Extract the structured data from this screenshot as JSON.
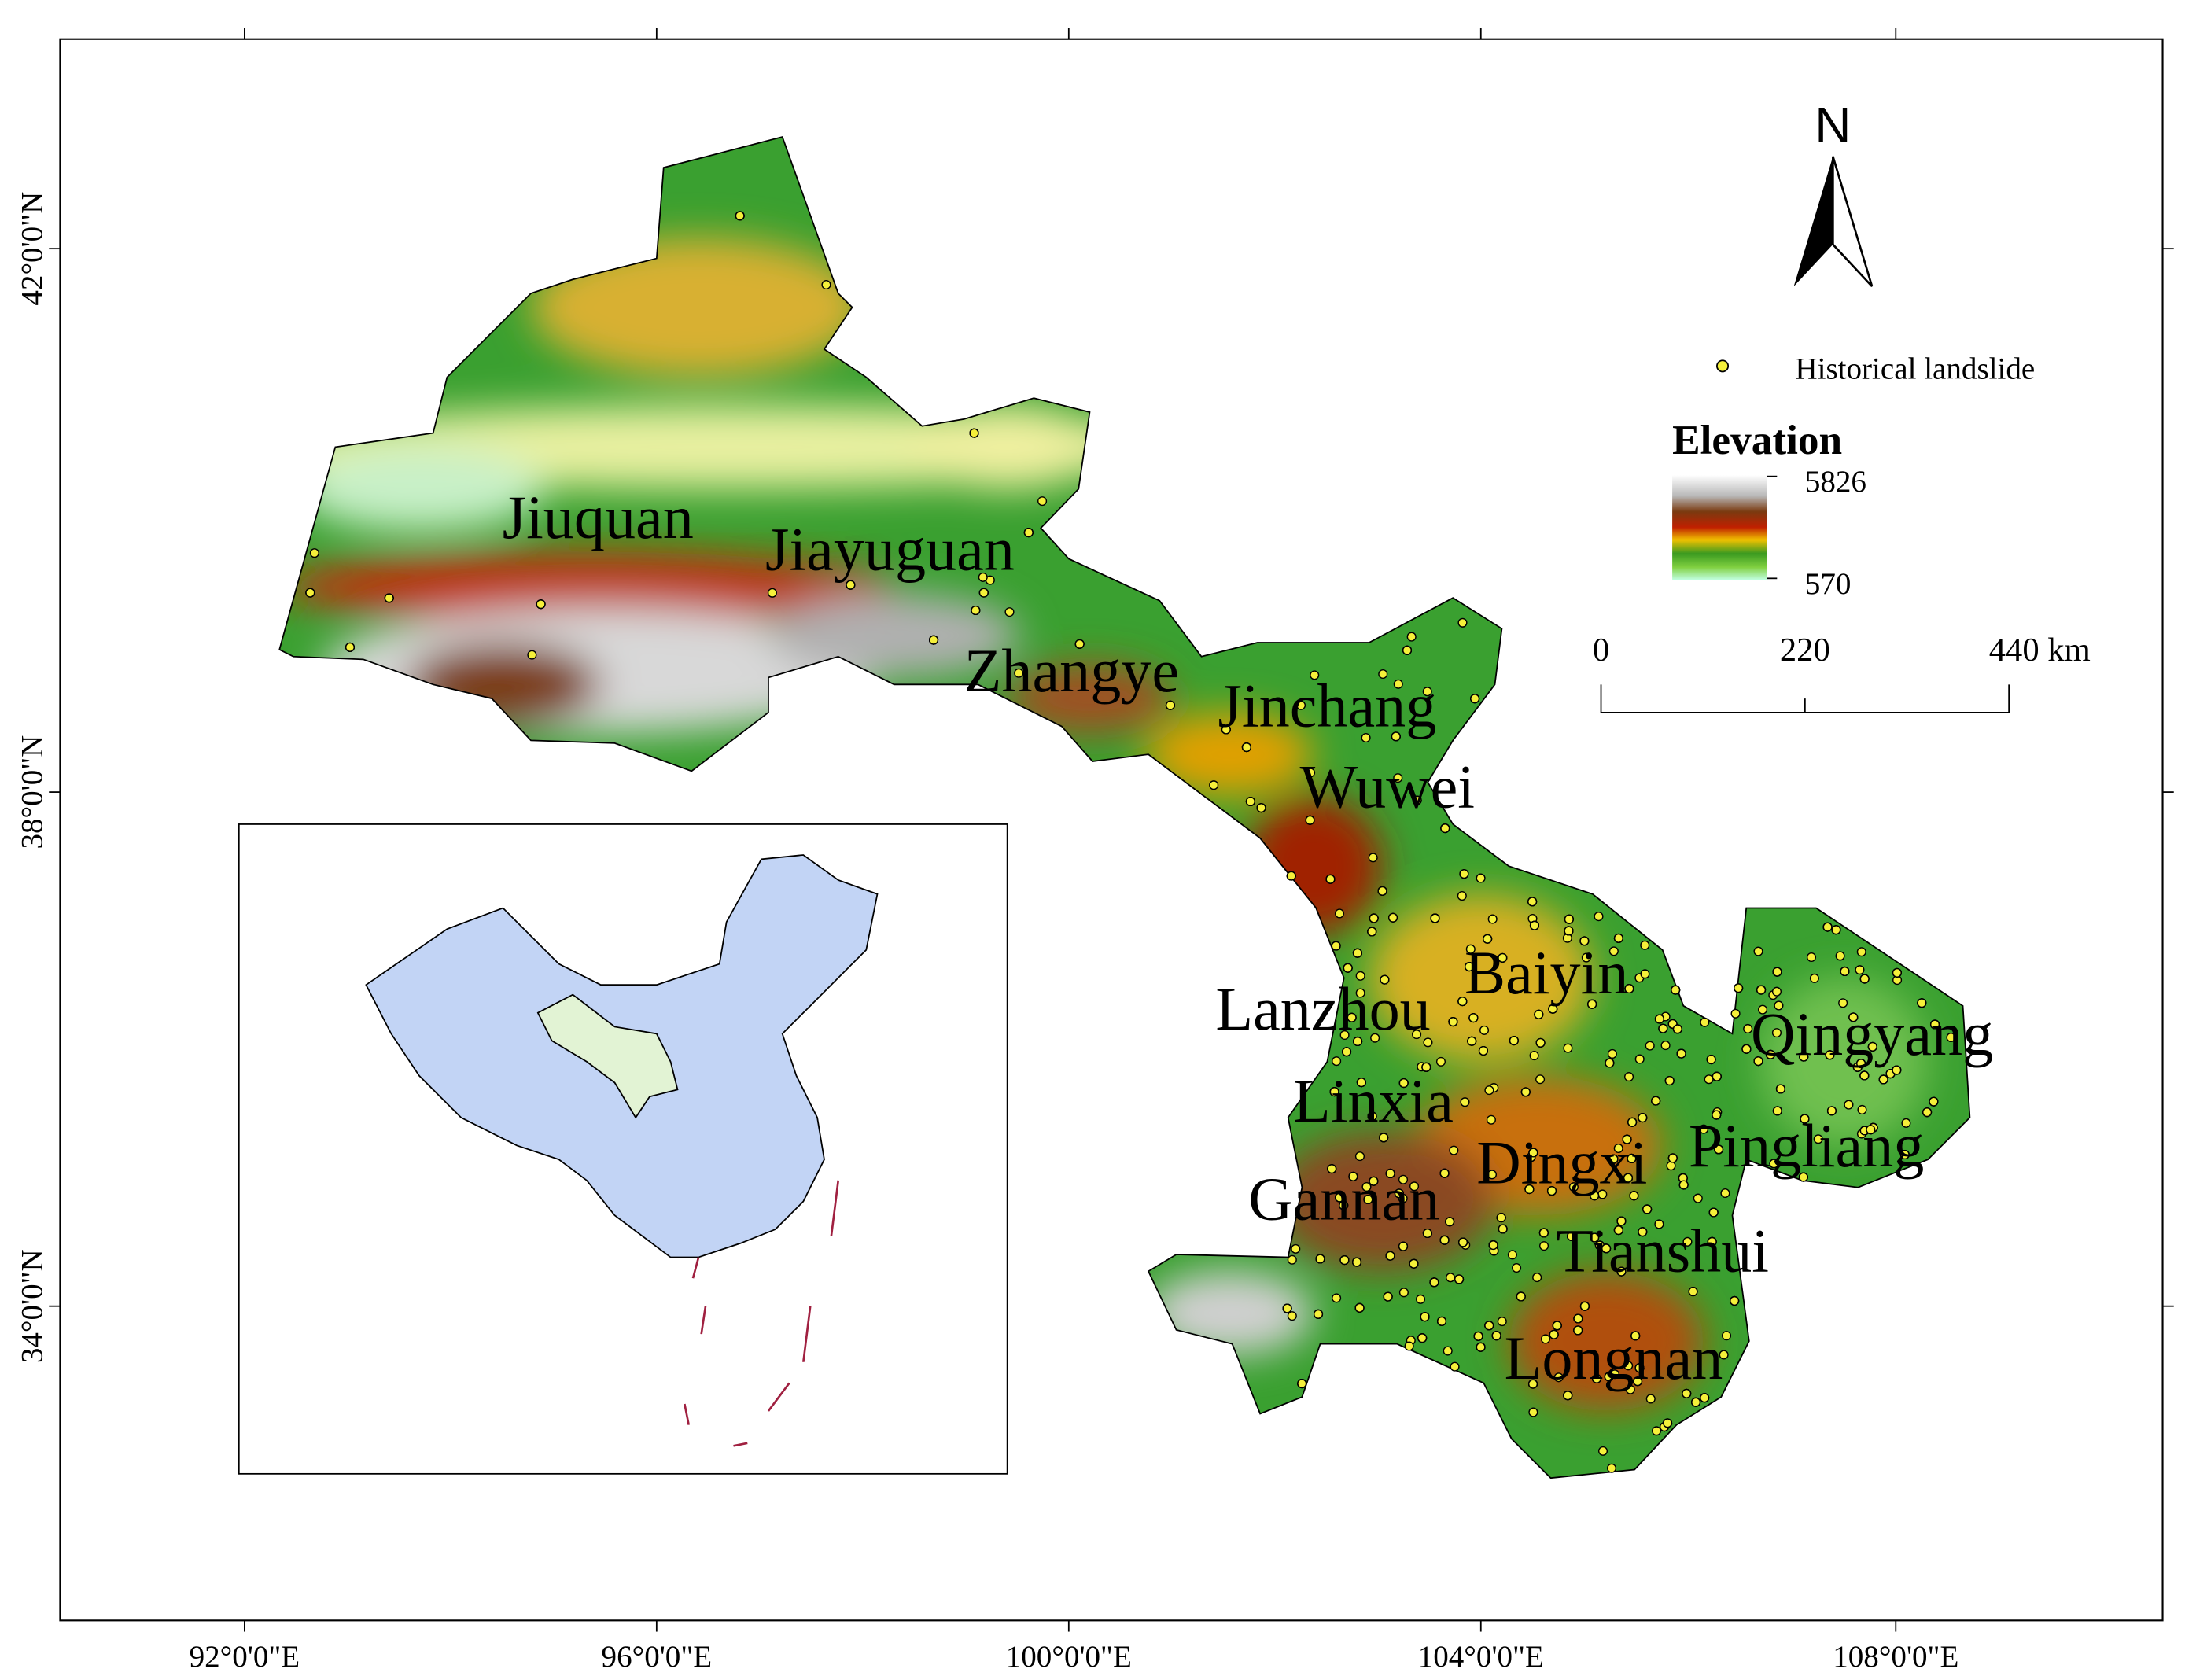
{
  "map": {
    "x_ticks": [
      "92°0'0\"E",
      "96°0'0\"E",
      "100°0'0\"E",
      "104°0'0\"E",
      "108°0'0\"E"
    ],
    "y_ticks": [
      "42°0'0\"N",
      "38°0'0\"N",
      "34°0'0\"N"
    ],
    "north": "N",
    "legend": {
      "landslide": "Historical landslide",
      "elevation_title": "Elevation",
      "elevation_max": 5826,
      "elevation_min": 570
    },
    "scale_bar": [
      "0",
      "220",
      "440 km"
    ],
    "cities": [
      "Jiuquan",
      "Jiayuguan",
      "Zhangye",
      "Jinchang",
      "Wuwei",
      "Baiyin",
      "Lanzhou",
      "Qingyang",
      "Linxia",
      "Pingliang",
      "Dingxi",
      "Gannan",
      "Tianshui",
      "Longnan"
    ]
  }
}
